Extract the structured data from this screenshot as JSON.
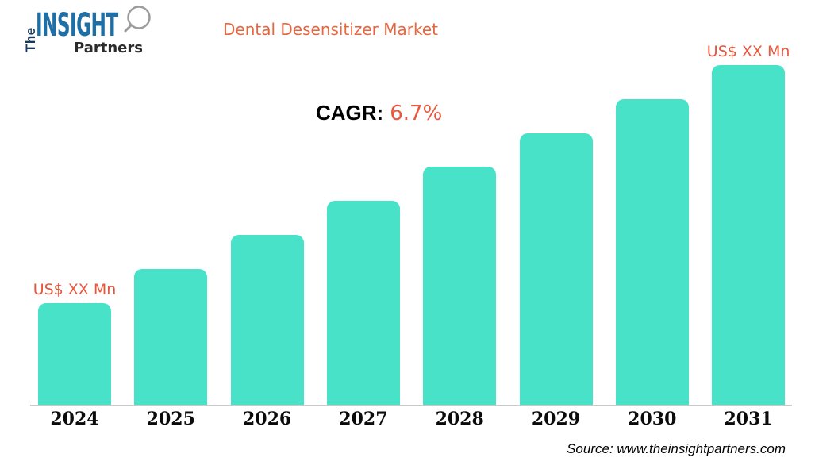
{
  "logo": {
    "the": "The",
    "insight": "INSIGHT",
    "partners": "Partners"
  },
  "header": {
    "title": "Dental Desensitizer Market"
  },
  "cagr": {
    "label": "CAGR:",
    "value": "6.7%"
  },
  "source": {
    "text": "Source: www.theinsightpartners.com"
  },
  "colors": {
    "bar": "#48E2C8",
    "accent_orange": "#E8573C",
    "title_orange": "#E7653F",
    "logo_blue": "#1E6FA6",
    "logo_navy": "#1A3A5C",
    "logo_gray": "#9B9B9B",
    "partners_dark": "#2B2B2B",
    "axis_line": "#C9C9C9",
    "text_black": "#0B0B0B"
  },
  "chart_data": {
    "type": "bar",
    "title": "Dental Desensitizer Market",
    "categories": [
      "2024",
      "2025",
      "2026",
      "2027",
      "2028",
      "2029",
      "2030",
      "2031"
    ],
    "values_relative_pct": [
      30,
      40,
      50,
      60,
      70,
      80,
      90,
      100
    ],
    "bar_value_labels": [
      "US$ XX Mn",
      "",
      "",
      "",
      "",
      "",
      "",
      "US$ XX Mn"
    ],
    "annotation": "CAGR: 6.7%",
    "xlabel": "",
    "ylabel": "",
    "value_axis_hidden": true,
    "grid": false,
    "legend": false,
    "note": "Actual values masked as 'US$ XX Mn'; bar heights rise linearly from 30% to 100% of the 2031 bar"
  }
}
